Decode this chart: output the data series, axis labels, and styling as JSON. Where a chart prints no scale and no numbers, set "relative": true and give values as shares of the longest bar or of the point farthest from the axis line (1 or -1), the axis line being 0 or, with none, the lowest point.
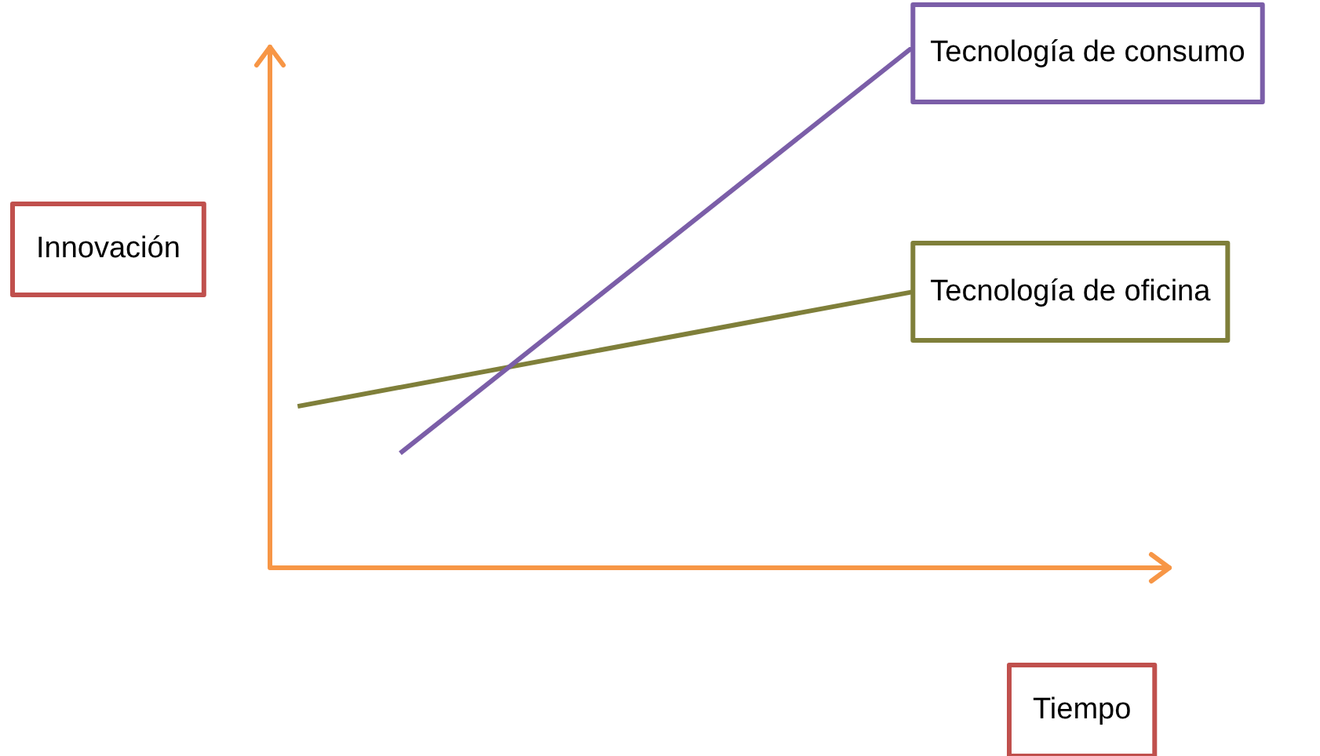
{
  "chart_data": {
    "type": "line",
    "relative": true,
    "xlabel": "Tiempo",
    "ylabel": "Innovación",
    "categories": [
      null,
      null,
      null,
      null,
      null,
      null,
      null
    ],
    "series": [
      {
        "name": "Tecnología de consumo",
        "color": "#7b5ea8",
        "values": [
          null,
          0.22,
          null,
          null,
          null,
          null,
          1
        ]
      },
      {
        "name": "Tecnología de oficina",
        "color": "#7f7f3a",
        "values": [
          0.31,
          null,
          null,
          null,
          null,
          null,
          0.53
        ]
      }
    ],
    "legend": false,
    "marker": "none"
  }
}
